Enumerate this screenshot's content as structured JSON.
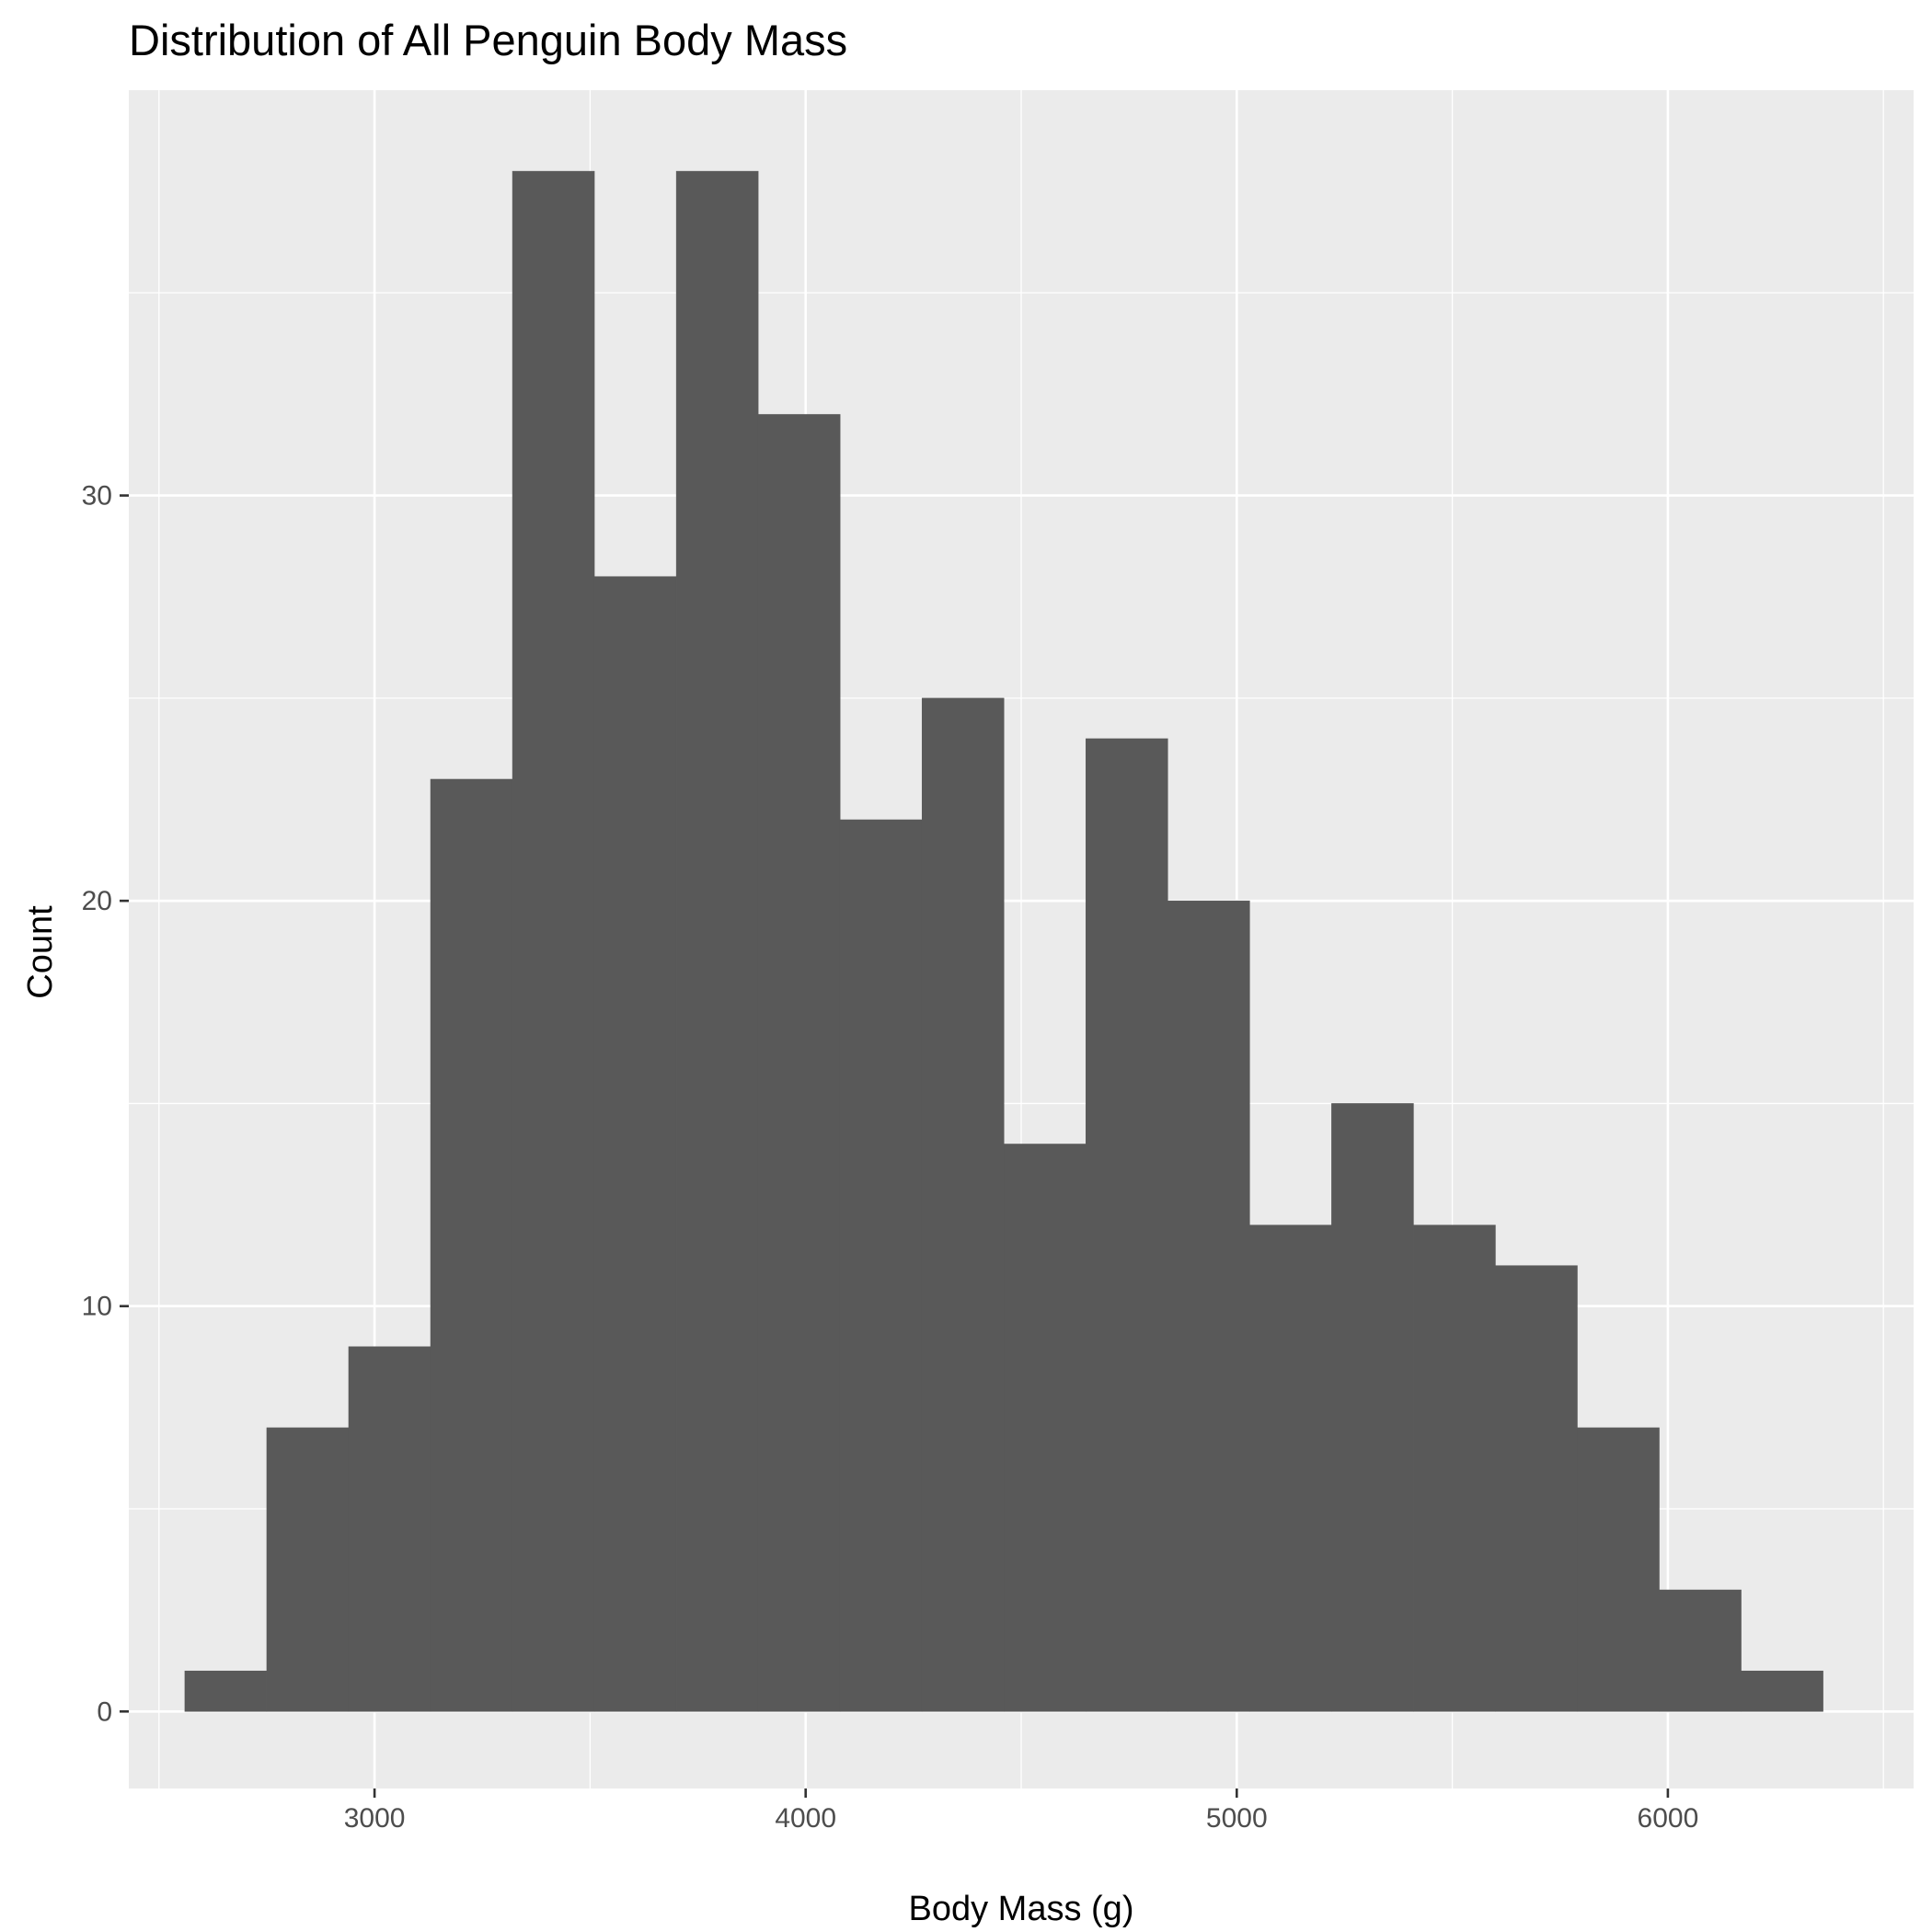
{
  "chart_data": {
    "type": "bar",
    "title": "Distribution of All Penguin Body Mass",
    "xlabel": "Body Mass (g)",
    "ylabel": "Count",
    "xlim": [
      2430,
      6570
    ],
    "ylim": [
      -1.9,
      40
    ],
    "x_ticks": [
      3000,
      4000,
      5000,
      6000
    ],
    "x_minor_ticks": [
      2500,
      3500,
      4500,
      5500,
      6500
    ],
    "y_ticks": [
      0,
      10,
      20,
      30
    ],
    "y_minor_ticks": [
      5,
      15,
      25,
      35
    ],
    "bins": [
      {
        "x0": 2560,
        "x1": 2750,
        "count": 1
      },
      {
        "x0": 2750,
        "x1": 2940,
        "count": 7
      },
      {
        "x0": 2940,
        "x1": 3130,
        "count": 9
      },
      {
        "x0": 3130,
        "x1": 3320,
        "count": 23
      },
      {
        "x0": 3320,
        "x1": 3510,
        "count": 38
      },
      {
        "x0": 3510,
        "x1": 3700,
        "count": 28
      },
      {
        "x0": 3700,
        "x1": 3890,
        "count": 38
      },
      {
        "x0": 3890,
        "x1": 4080,
        "count": 32
      },
      {
        "x0": 4080,
        "x1": 4270,
        "count": 22
      },
      {
        "x0": 4270,
        "x1": 4460,
        "count": 25
      },
      {
        "x0": 4460,
        "x1": 4650,
        "count": 14
      },
      {
        "x0": 4650,
        "x1": 4840,
        "count": 24
      },
      {
        "x0": 4840,
        "x1": 5030,
        "count": 20
      },
      {
        "x0": 5030,
        "x1": 5220,
        "count": 12
      },
      {
        "x0": 5220,
        "x1": 5410,
        "count": 15
      },
      {
        "x0": 5410,
        "x1": 5600,
        "count": 12
      },
      {
        "x0": 5600,
        "x1": 5790,
        "count": 11
      },
      {
        "x0": 5790,
        "x1": 5980,
        "count": 7
      },
      {
        "x0": 5980,
        "x1": 6170,
        "count": 3
      },
      {
        "x0": 6170,
        "x1": 6360,
        "count": 1
      }
    ],
    "grid": true,
    "legend": "none",
    "colors": {
      "panel_background": "#ebebeb",
      "grid_major": "#ffffff",
      "grid_minor": "#ffffff",
      "bar_fill": "#595959",
      "tick_color": "#333333",
      "tick_label_color": "#4d4d4d"
    }
  }
}
